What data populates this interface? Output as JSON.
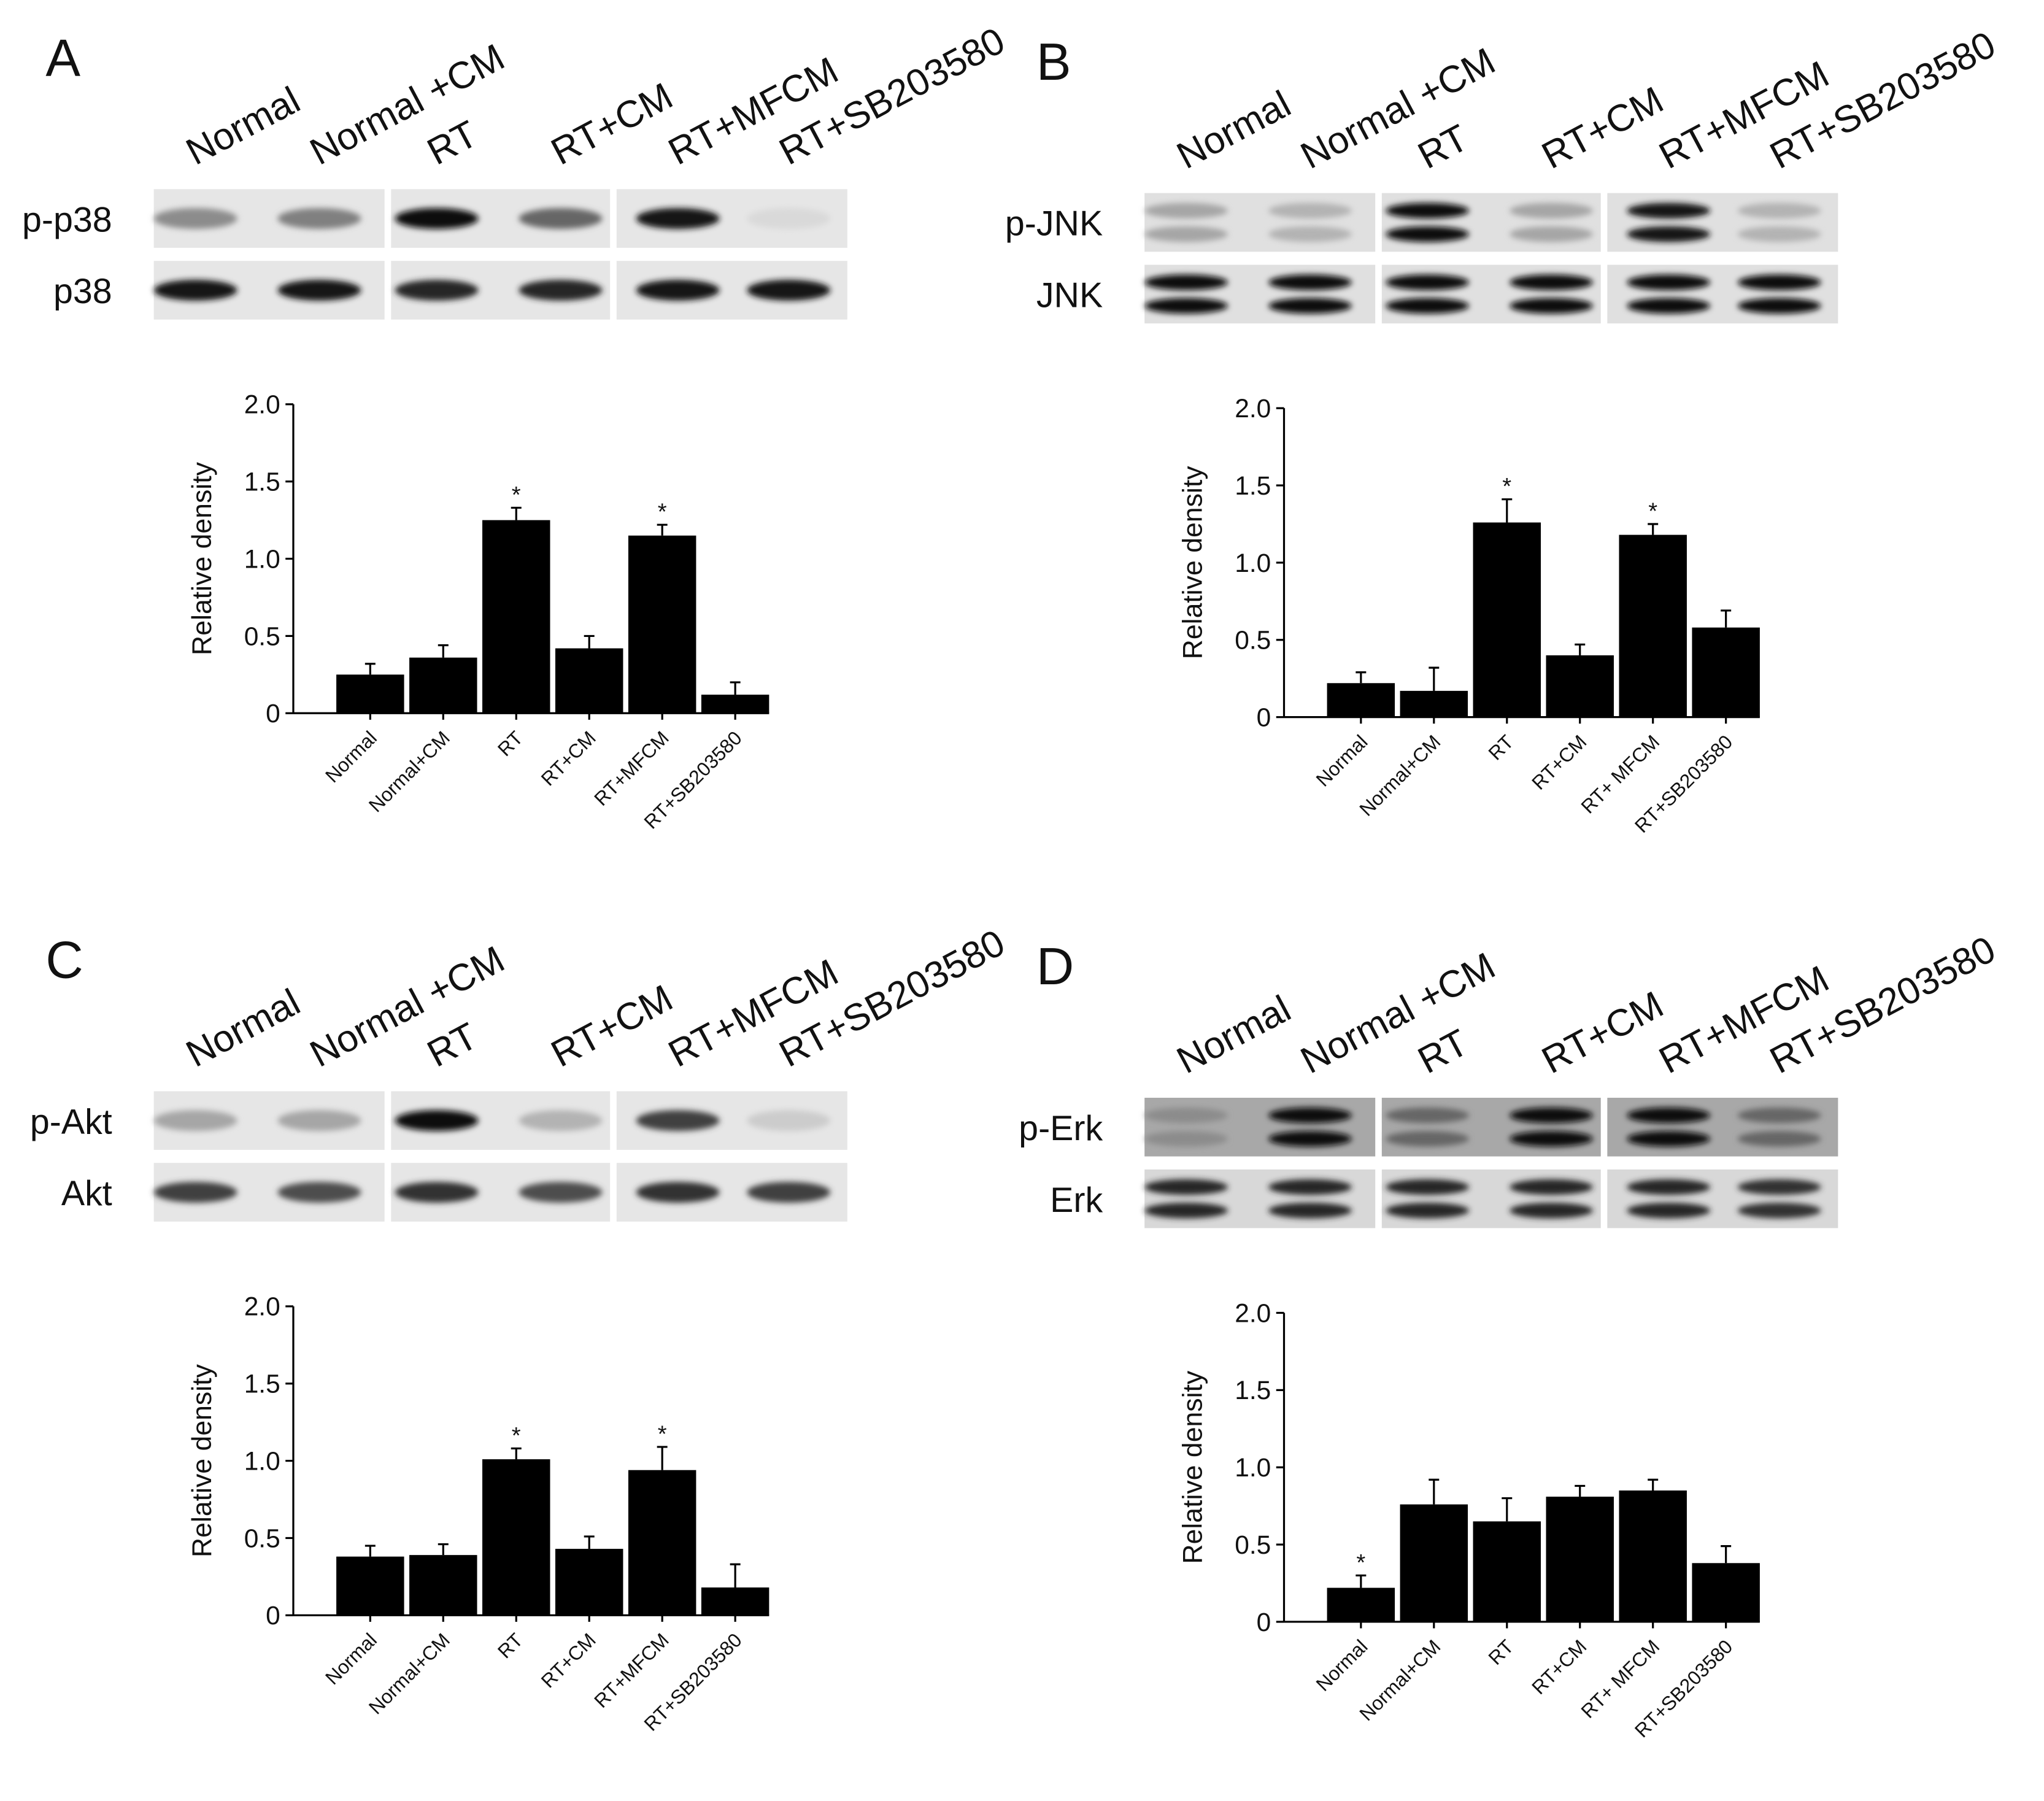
{
  "chart_data": [
    {
      "type": "bar",
      "panel": "A",
      "lanes": [
        "Normal",
        "Normal +CM",
        "RT",
        "RT+CM",
        "RT+MFCM",
        "RT+SB203580"
      ],
      "blot_rows": [
        "p-p38",
        "p38"
      ],
      "y_label": "Relative density",
      "categories": [
        "Normal",
        "Normal+CM",
        "RT",
        "RT+CM",
        "RT+MFCM",
        "RT+SB203580"
      ],
      "values": [
        0.25,
        0.36,
        1.25,
        0.42,
        1.15,
        0.12
      ],
      "errors": [
        0.07,
        0.08,
        0.08,
        0.08,
        0.07,
        0.08
      ],
      "annotations": [
        null,
        null,
        "*",
        null,
        "*",
        null
      ],
      "color": "#000000",
      "ylim": [
        0,
        2
      ],
      "yticks": [
        0,
        0.5,
        {
          "value": 1,
          "label": "1.0"
        },
        1.5,
        {
          "value": 2,
          "label": "2.0"
        }
      ]
    },
    {
      "type": "bar",
      "panel": "B",
      "lanes": [
        "Normal",
        "Normal +CM",
        "RT",
        "RT+CM",
        "RT+MFCM",
        "RT+SB203580"
      ],
      "blot_rows": [
        "p-JNK",
        "JNK"
      ],
      "y_label": "Relative density",
      "categories": [
        "Normal",
        "Normal+CM",
        "RT",
        "RT+CM",
        "RT+ MFCM",
        "RT+SB203580"
      ],
      "values": [
        0.22,
        0.17,
        1.26,
        0.4,
        1.18,
        0.58
      ],
      "errors": [
        0.07,
        0.15,
        0.15,
        0.07,
        0.07,
        0.11
      ],
      "annotations": [
        null,
        null,
        "*",
        null,
        "*",
        null
      ],
      "color": "#000000",
      "ylim": [
        0,
        2
      ],
      "yticks": [
        0,
        0.5,
        {
          "value": 1,
          "label": "1.0"
        },
        1.5,
        {
          "value": 2,
          "label": "2.0"
        }
      ]
    },
    {
      "type": "bar",
      "panel": "C",
      "lanes": [
        "Normal",
        "Normal +CM",
        "RT",
        "RT+CM",
        "RT+MFCM",
        "RT+SB203580"
      ],
      "blot_rows": [
        "p-Akt",
        "Akt"
      ],
      "y_label": "Relative density",
      "categories": [
        "Normal",
        "Normal+CM",
        "RT",
        "RT+CM",
        "RT+MFCM",
        "RT+SB203580"
      ],
      "values": [
        0.38,
        0.39,
        1.01,
        0.43,
        0.94,
        0.18
      ],
      "errors": [
        0.07,
        0.07,
        0.07,
        0.08,
        0.15,
        0.15
      ],
      "annotations": [
        null,
        null,
        "*",
        null,
        "*",
        null
      ],
      "color": "#000000",
      "ylim": [
        0,
        2
      ],
      "yticks": [
        0,
        0.5,
        {
          "value": 1,
          "label": "1.0"
        },
        1.5,
        {
          "value": 2,
          "label": "2.0"
        }
      ]
    },
    {
      "type": "bar",
      "panel": "D",
      "lanes": [
        "Normal",
        "Normal +CM",
        "RT",
        "RT+CM",
        "RT+MFCM",
        "RT+SB203580"
      ],
      "blot_rows": [
        "p-Erk",
        "Erk"
      ],
      "y_label": "Relative density",
      "categories": [
        "Normal",
        "Normal+CM",
        "RT",
        "RT+CM",
        "RT+ MFCM",
        "RT+SB203580"
      ],
      "values": [
        0.22,
        0.76,
        0.65,
        0.81,
        0.85,
        0.38
      ],
      "errors": [
        0.08,
        0.16,
        0.15,
        0.07,
        0.07,
        0.11
      ],
      "annotations": [
        "*",
        null,
        null,
        null,
        null,
        null
      ],
      "color": "#000000",
      "ylim": [
        0,
        2
      ],
      "yticks": [
        0,
        0.5,
        {
          "value": 1,
          "label": "1.0"
        },
        1.5,
        {
          "value": 2,
          "label": "2.0"
        }
      ]
    }
  ]
}
